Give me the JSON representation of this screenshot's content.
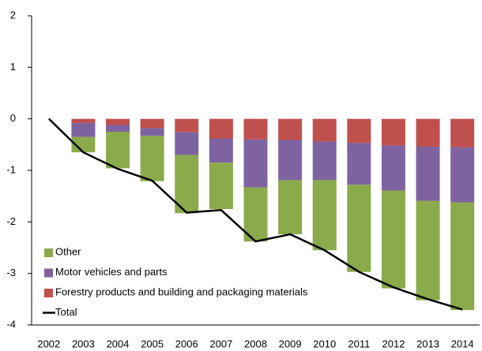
{
  "chart_data": {
    "type": "bar",
    "categories": [
      "2002",
      "2003",
      "2004",
      "2005",
      "2006",
      "2007",
      "2008",
      "2009",
      "2010",
      "2011",
      "2012",
      "2013",
      "2014"
    ],
    "series": [
      {
        "name": "Forestry products and building and packaging materials",
        "color": "#c0504d",
        "values": [
          0,
          -0.08,
          -0.12,
          -0.18,
          -0.26,
          -0.38,
          -0.4,
          -0.41,
          -0.44,
          -0.47,
          -0.52,
          -0.54,
          -0.55
        ]
      },
      {
        "name": "Motor vehicles and parts",
        "color": "#7f63a1",
        "values": [
          0,
          -0.27,
          -0.13,
          -0.15,
          -0.44,
          -0.47,
          -0.93,
          -0.78,
          -0.75,
          -0.81,
          -0.87,
          -1.05,
          -1.07
        ]
      },
      {
        "name": "Other",
        "color": "#8aaa4b",
        "values": [
          0,
          -0.3,
          -0.71,
          -0.88,
          -1.13,
          -0.9,
          -1.05,
          -1.05,
          -1.36,
          -1.69,
          -1.9,
          -1.93,
          -2.09
        ]
      }
    ],
    "line": {
      "name": "Total",
      "color": "#000000",
      "values": [
        0,
        -0.65,
        -0.97,
        -1.2,
        -1.82,
        -1.77,
        -2.38,
        -2.24,
        -2.55,
        -2.97,
        -3.27,
        -3.5,
        -3.7
      ]
    },
    "ylim": [
      -4,
      2
    ],
    "yticks": [
      -4,
      -3,
      -2,
      -1,
      0,
      1,
      2
    ],
    "grid": false,
    "legend": "lower left"
  }
}
